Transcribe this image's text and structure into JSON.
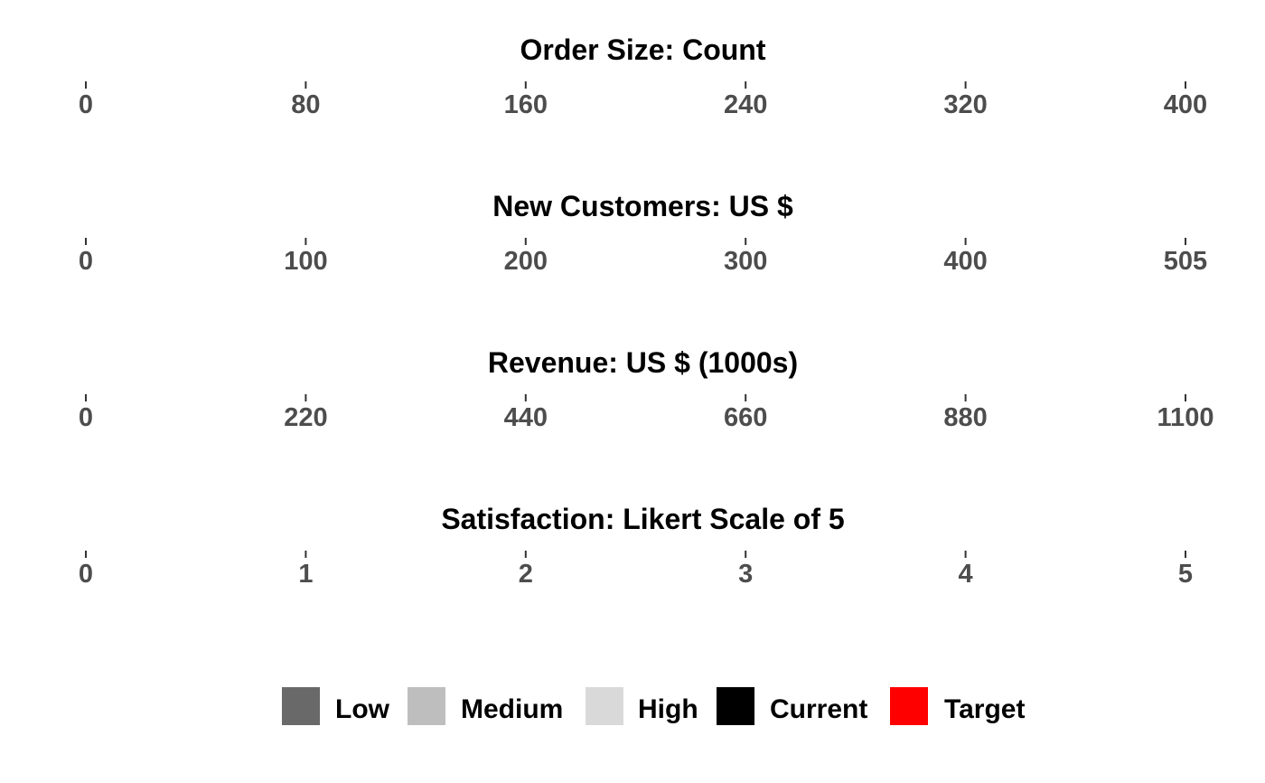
{
  "chart_data": {
    "type": "bullet",
    "panels": [
      {
        "title": "Order Size: Count",
        "ticks": [
          0,
          80,
          160,
          240,
          320,
          400
        ],
        "tick_labels": [
          "0",
          "80",
          "160",
          "240",
          "320",
          "400"
        ],
        "xlim": [
          0,
          400
        ]
      },
      {
        "title": "New Customers: US $",
        "ticks": [
          0,
          101,
          202,
          303,
          404,
          505
        ],
        "tick_labels": [
          "0",
          "100",
          "200",
          "300",
          "400",
          "505"
        ],
        "xlim": [
          0,
          505
        ]
      },
      {
        "title": "Revenue: US $ (1000s)",
        "ticks": [
          0,
          220,
          440,
          660,
          880,
          1100
        ],
        "tick_labels": [
          "0",
          "220",
          "440",
          "660",
          "880",
          "1100"
        ],
        "xlim": [
          0,
          1100
        ]
      },
      {
        "title": "Satisfaction: Likert Scale of 5",
        "ticks": [
          0,
          1,
          2,
          3,
          4,
          5
        ],
        "tick_labels": [
          "0",
          "1",
          "2",
          "3",
          "4",
          "5"
        ],
        "xlim": [
          0,
          5
        ]
      }
    ],
    "grid": false,
    "legend_position": "bottom",
    "legend": [
      {
        "label": "Low",
        "color": "#696969"
      },
      {
        "label": "Medium",
        "color": "#bebebe"
      },
      {
        "label": "High",
        "color": "#d9d9d9"
      },
      {
        "label": "Current",
        "color": "#000000"
      },
      {
        "label": "Target",
        "color": "#ff0000"
      }
    ]
  }
}
